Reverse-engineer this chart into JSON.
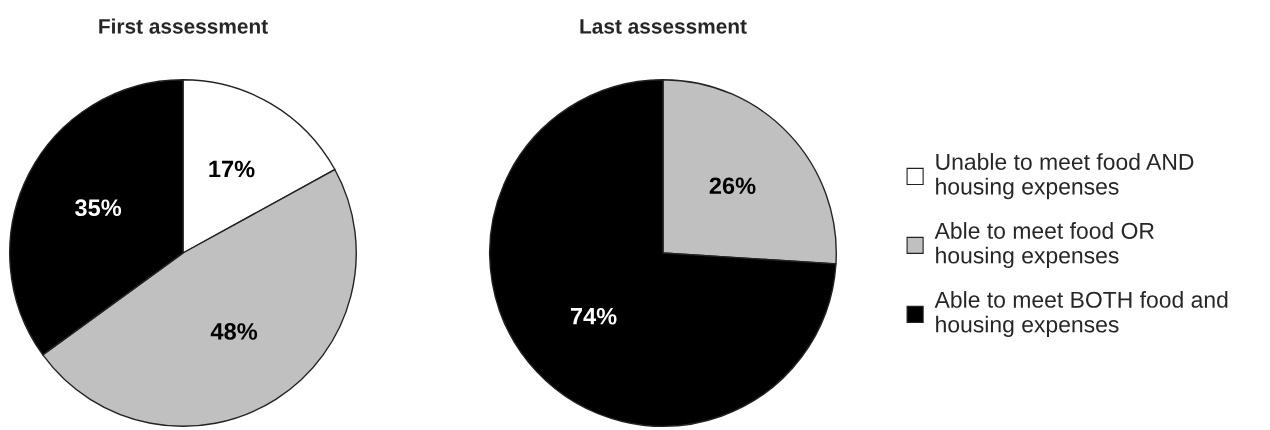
{
  "chart_data": [
    {
      "type": "pie",
      "title": "First assessment",
      "categories": [
        "Unable to meet food AND\nhousing expenses",
        "Able to meet food OR\nhousing expenses",
        "Able to meet BOTH food and\nhousing expenses"
      ],
      "values": [
        17,
        48,
        35
      ],
      "colors": [
        "#ffffff",
        "#c0c0c0",
        "#000000"
      ],
      "value_labels": [
        "17%",
        "48%",
        "35%"
      ],
      "legend": "right"
    },
    {
      "type": "pie",
      "title": "Last assessment",
      "categories": [
        null,
        null,
        null
      ],
      "values": [
        0,
        26,
        74
      ],
      "colors": [
        "#ffffff",
        "#c0c0c0",
        "#000000"
      ],
      "value_labels": [
        null,
        "26%",
        "74%"
      ]
    }
  ]
}
